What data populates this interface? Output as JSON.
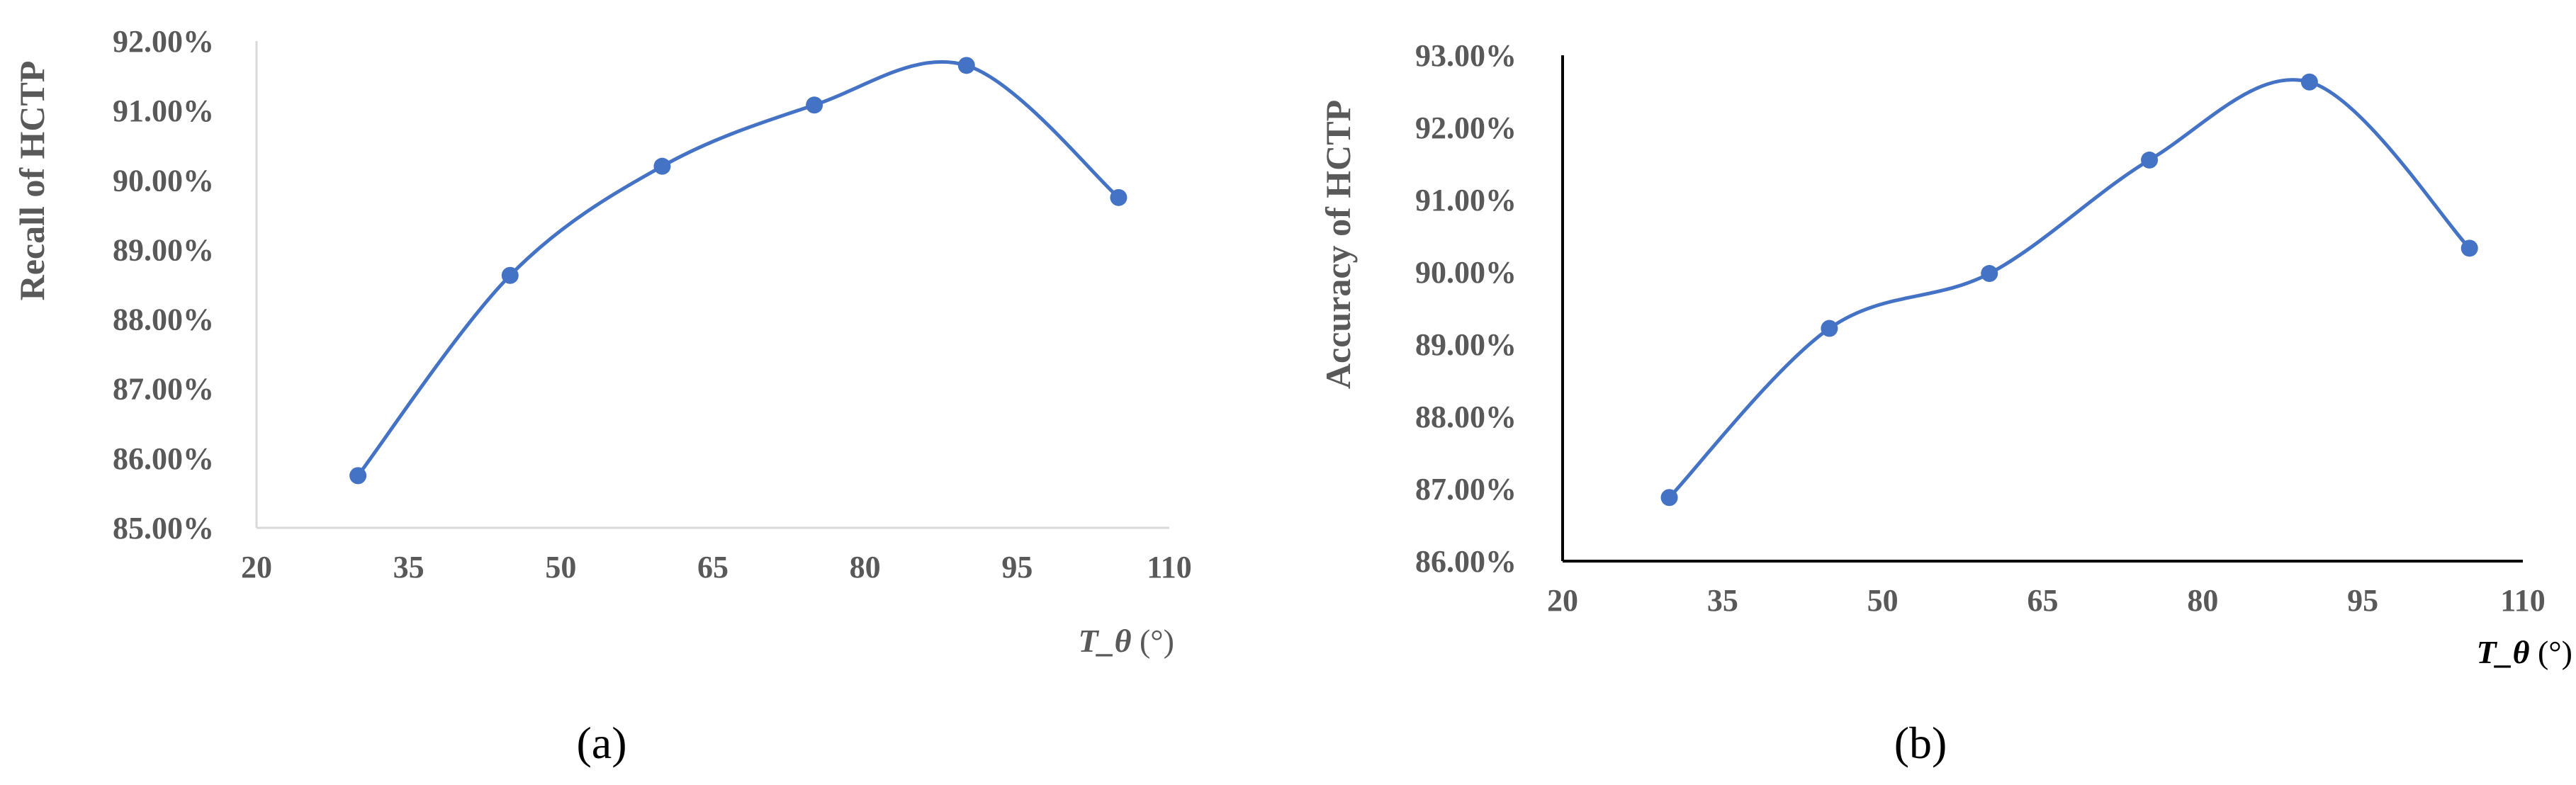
{
  "accent_color": "#4472c4",
  "chart_data": [
    {
      "type": "line",
      "panel_label": "(a)",
      "ylabel": "Recall of HCTP",
      "xlabel_var": "T_θ",
      "xlabel_unit": " (°)",
      "x": [
        30,
        45,
        60,
        75,
        90,
        105
      ],
      "values": [
        85.75,
        88.63,
        90.2,
        91.08,
        91.65,
        89.75
      ],
      "xlim": [
        20,
        110
      ],
      "ylim": [
        85,
        92
      ],
      "xticks": [
        "20",
        "35",
        "50",
        "65",
        "80",
        "95",
        "110"
      ],
      "yticks": [
        "85.00%",
        "86.00%",
        "87.00%",
        "88.00%",
        "89.00%",
        "90.00%",
        "91.00%",
        "92.00%"
      ],
      "grid": false,
      "smooth": true
    },
    {
      "type": "line",
      "panel_label": "(b)",
      "ylabel": "Accuracy of HCTP",
      "xlabel_var": "T_θ",
      "xlabel_unit": " (°)",
      "x": [
        30,
        45,
        60,
        75,
        90,
        105
      ],
      "values": [
        86.88,
        89.22,
        89.98,
        91.55,
        92.63,
        90.33
      ],
      "xlim": [
        20,
        110
      ],
      "ylim": [
        86,
        93
      ],
      "xticks": [
        "20",
        "35",
        "50",
        "65",
        "80",
        "95",
        "110"
      ],
      "yticks": [
        "86.00%",
        "87.00%",
        "88.00%",
        "89.00%",
        "90.00%",
        "91.00%",
        "92.00%",
        "93.00%"
      ],
      "grid": false,
      "smooth": true
    }
  ]
}
